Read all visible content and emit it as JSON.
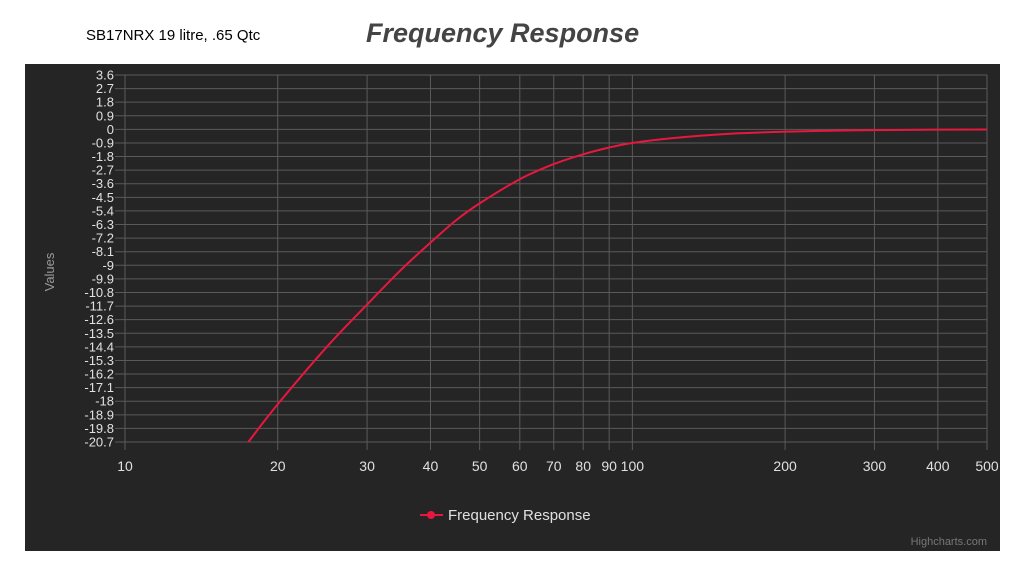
{
  "header": {
    "subtitle": "SB17NRX 19 litre, .65 Qtc",
    "title": "Frequency Response"
  },
  "credits": "Highcharts.com",
  "colors": {
    "background": "#252525",
    "grid": "#5a5a5a",
    "series": "#e8173e",
    "axis_text": "#e0e0e0",
    "axis_title": "#9a9a9a",
    "title": "#444444"
  },
  "chart_data": {
    "type": "line",
    "title": "Frequency Response",
    "subtitle": "SB17NRX 19 litre, .65 Qtc",
    "xlabel": "",
    "ylabel": "Values",
    "xscale": "log",
    "xlim": [
      10,
      500
    ],
    "ylim": [
      -20.7,
      3.6
    ],
    "grid": true,
    "legend_position": "bottom-center",
    "x_ticks": [
      10,
      20,
      30,
      40,
      50,
      60,
      70,
      80,
      90,
      100,
      200,
      300,
      400,
      500
    ],
    "y_ticks": [
      3.6,
      2.7,
      1.8,
      0.9,
      0,
      -0.9,
      -1.8,
      -2.7,
      -3.6,
      -4.5,
      -5.4,
      -6.3,
      -7.2,
      -8.1,
      -9,
      -9.9,
      -10.8,
      -11.7,
      -12.6,
      -13.5,
      -14.4,
      -15.3,
      -16.2,
      -17.1,
      -18,
      -18.9,
      -19.8,
      -20.7
    ],
    "series": [
      {
        "name": "Frequency Response",
        "x": [
          17.5,
          20,
          25,
          30,
          35,
          40,
          45,
          50,
          60,
          70,
          80,
          90,
          100,
          120,
          150,
          200,
          250,
          300,
          400,
          500
        ],
        "values": [
          -20.7,
          -18.2,
          -14.4,
          -11.6,
          -9.3,
          -7.5,
          -6.0,
          -4.9,
          -3.3,
          -2.3,
          -1.65,
          -1.2,
          -0.9,
          -0.58,
          -0.32,
          -0.15,
          -0.08,
          -0.05,
          -0.02,
          -0.01
        ]
      }
    ]
  }
}
